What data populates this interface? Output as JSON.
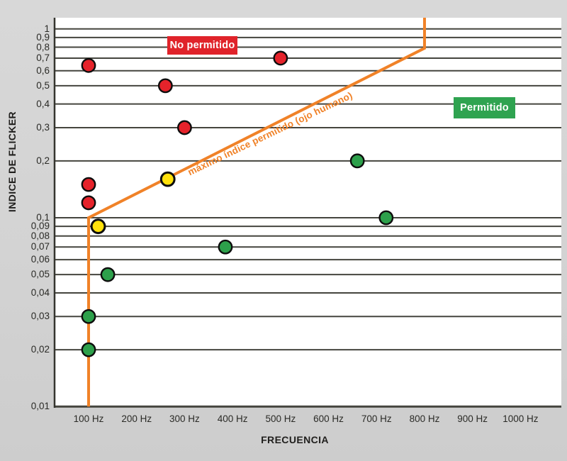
{
  "page": {
    "background": "#d4d4d4",
    "text_color": "#2a2a26"
  },
  "chart_data": {
    "type": "scatter",
    "title": "",
    "xlabel": "FRECUENCIA",
    "ylabel": "INDICE DE FLICKER",
    "x_axis": {
      "title": "FRECUENCIA",
      "scale": "linear",
      "unit": "Hz",
      "ticks": [
        100,
        200,
        300,
        400,
        500,
        600,
        700,
        800,
        900,
        1000
      ],
      "tick_labels": [
        "100 Hz",
        "200 Hz",
        "300 Hz",
        "400 Hz",
        "500 Hz",
        "600 Hz",
        "700 Hz",
        "800 Hz",
        "900 Hz",
        "1000 Hz"
      ]
    },
    "y_axis": {
      "title": "INDICE DE FLICKER",
      "scale": "log",
      "ticks": [
        1,
        0.9,
        0.8,
        0.7,
        0.6,
        0.5,
        0.4,
        0.3,
        0.2,
        0.1,
        0.09,
        0.08,
        0.07,
        0.06,
        0.05,
        0.04,
        0.03,
        0.02,
        0.01
      ],
      "tick_labels": [
        "1",
        "0,9",
        "0,8",
        "0,7",
        "0,6",
        "0,5",
        "0,4",
        "0,3",
        "0,2",
        "0,1",
        "0,09",
        "0,08",
        "0,07",
        "0,06",
        "0,05",
        "0,04",
        "0,03",
        "0,02",
        "0,01"
      ],
      "range": [
        0.01,
        1
      ]
    },
    "grid": {
      "horizontal": true,
      "vertical": false,
      "color": "#45453e"
    },
    "series": [
      {
        "key": "red-no-permitido",
        "color": "#e5232b",
        "outline": "#0d0d0d",
        "points": [
          [
            100,
            0.64
          ],
          [
            260,
            0.5
          ],
          [
            300,
            0.3
          ],
          [
            500,
            0.7
          ],
          [
            100,
            0.15
          ],
          [
            100,
            0.12
          ]
        ]
      },
      {
        "key": "yellow-limit",
        "color": "#ffe10b",
        "outline": "#0d0d0d",
        "points": [
          [
            265,
            0.16
          ],
          [
            120,
            0.09
          ]
        ]
      },
      {
        "key": "green-permitido",
        "color": "#2da04b",
        "outline": "#0d0d0d",
        "points": [
          [
            660,
            0.2
          ],
          [
            720,
            0.1
          ],
          [
            385,
            0.07
          ],
          [
            140,
            0.05
          ],
          [
            100,
            0.03
          ],
          [
            100,
            0.02
          ]
        ]
      }
    ],
    "boundary_line": {
      "label": "máximo índice permitido (ojo humano)",
      "color": "#f08228",
      "points": [
        [
          100,
          0.01
        ],
        [
          100,
          0.1
        ],
        [
          800,
          0.79
        ],
        [
          800,
          1.15
        ]
      ]
    },
    "regions": [
      {
        "label": "No permitido",
        "color": "#e0232a",
        "text_color": "#ffffff"
      },
      {
        "label": "Permitido",
        "color": "#2fa350",
        "text_color": "#ffffff"
      }
    ]
  }
}
